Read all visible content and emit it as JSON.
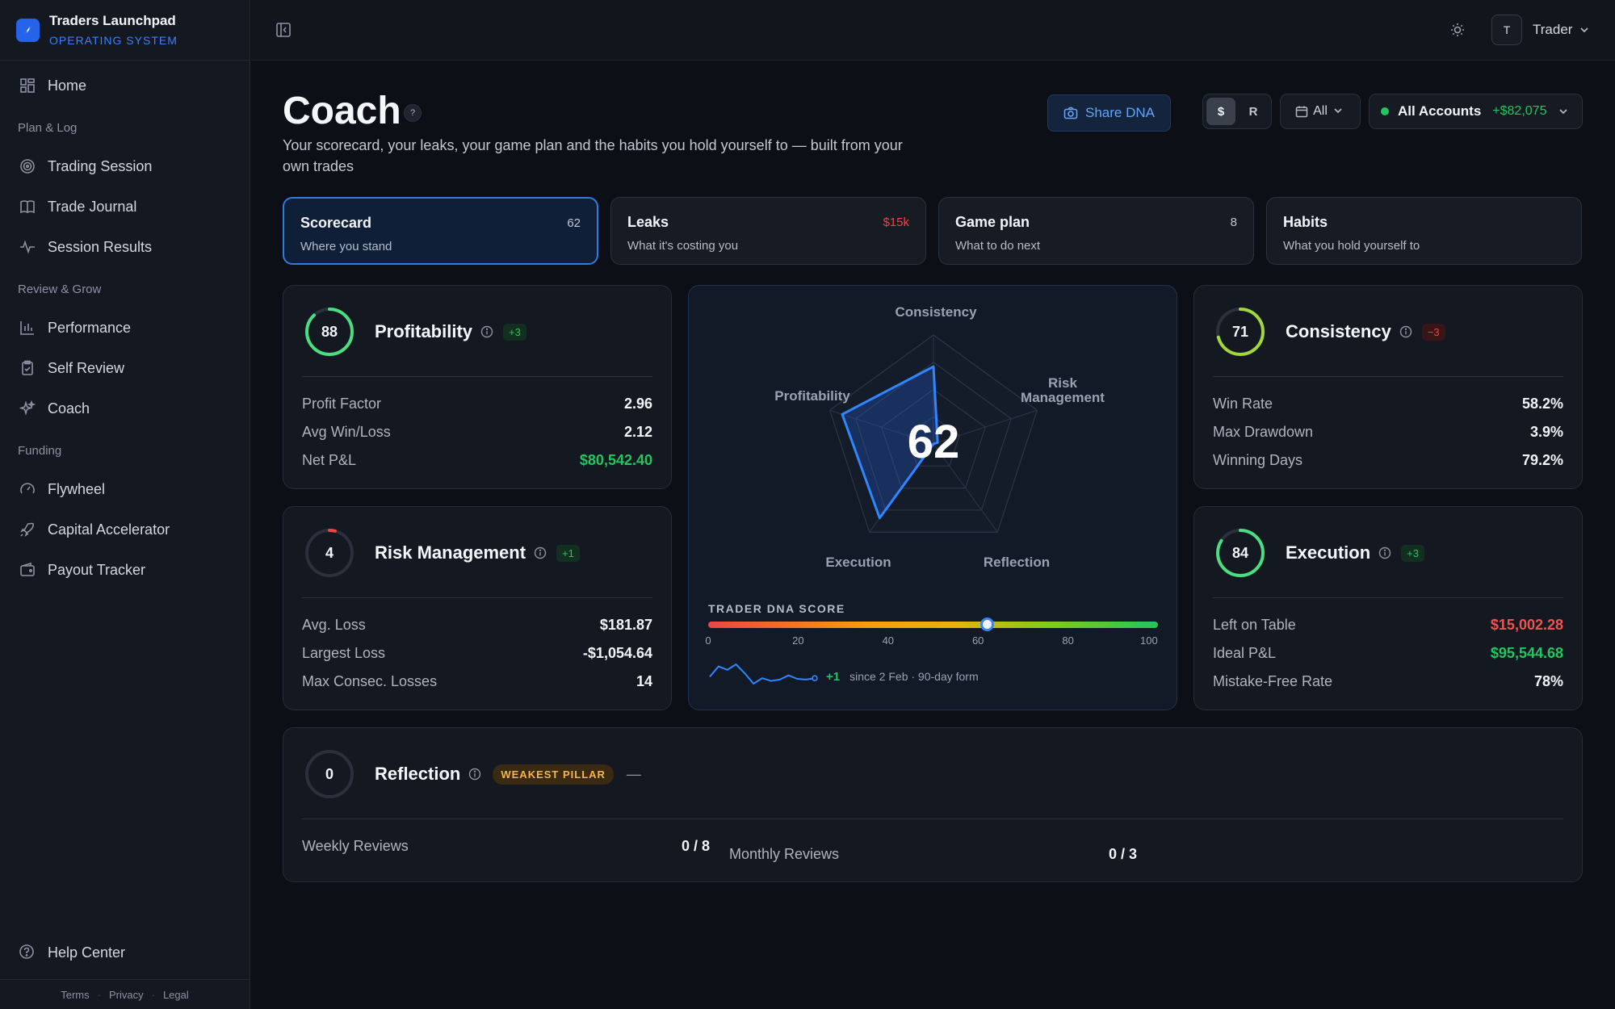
{
  "app": {
    "name": "Traders Launchpad",
    "subtitle": "OPERATING SYSTEM"
  },
  "sidebar": {
    "home": "Home",
    "sections": [
      {
        "label": "Plan & Log",
        "items": [
          "Trading Session",
          "Trade Journal",
          "Session Results"
        ]
      },
      {
        "label": "Review & Grow",
        "items": [
          "Performance",
          "Self Review",
          "Coach"
        ]
      },
      {
        "label": "Funding",
        "items": [
          "Flywheel",
          "Capital Accelerator",
          "Payout Tracker"
        ]
      }
    ],
    "help": "Help Center",
    "footer": [
      "Terms",
      "Privacy",
      "Legal"
    ]
  },
  "topbar": {
    "avatar_initial": "T",
    "user_name": "Trader"
  },
  "header": {
    "title": "Coach",
    "help_glyph": "?",
    "description": "Your scorecard, your leaks, your game plan and the habits you hold yourself to — built from your own trades",
    "share_label": "Share DNA",
    "unit_options": [
      "$",
      "R"
    ],
    "range_label": "All",
    "account_label": "All Accounts",
    "account_amount": "+$82,075"
  },
  "tabs": [
    {
      "title": "Scorecard",
      "subtitle": "Where you stand",
      "count": "62"
    },
    {
      "title": "Leaks",
      "subtitle": "What it's costing you",
      "count": "$15k"
    },
    {
      "title": "Game plan",
      "subtitle": "What to do next",
      "count": "8"
    },
    {
      "title": "Habits",
      "subtitle": "What you hold yourself to",
      "count": ""
    }
  ],
  "pillars": {
    "profitability": {
      "score": "88",
      "score_value": 88,
      "title": "Profitability",
      "delta": "+3",
      "color": "#4ade80",
      "rows": [
        {
          "label": "Profit Factor",
          "value": "2.96"
        },
        {
          "label": "Avg Win/Loss",
          "value": "2.12"
        },
        {
          "label": "Net P&L",
          "value": "$80,542.40"
        }
      ]
    },
    "risk": {
      "score": "4",
      "score_value": 4,
      "title": "Risk Management",
      "delta": "+1",
      "color": "#ef4444",
      "rows": [
        {
          "label": "Avg. Loss",
          "value": "$181.87"
        },
        {
          "label": "Largest Loss",
          "value": "-$1,054.64"
        },
        {
          "label": "Max Consec. Losses",
          "value": "14"
        }
      ]
    },
    "consistency": {
      "score": "71",
      "score_value": 71,
      "title": "Consistency",
      "delta": "−3",
      "color": "#a3d63a",
      "rows": [
        {
          "label": "Win Rate",
          "value": "58.2%"
        },
        {
          "label": "Max Drawdown",
          "value": "3.9%"
        },
        {
          "label": "Winning Days",
          "value": "79.2%"
        }
      ]
    },
    "execution": {
      "score": "84",
      "score_value": 84,
      "title": "Execution",
      "delta": "+3",
      "color": "#4ade80",
      "rows": [
        {
          "label": "Left on Table",
          "value": "$15,002.28"
        },
        {
          "label": "Ideal P&L",
          "value": "$95,544.68"
        },
        {
          "label": "Mistake-Free Rate",
          "value": "78%"
        }
      ]
    },
    "reflection": {
      "score": "0",
      "score_value": 0,
      "title": "Reflection",
      "badge": "WEAKEST PILLAR",
      "dash": "—",
      "rows": [
        {
          "label": "Weekly Reviews",
          "value": "0 / 8"
        },
        {
          "label": "Monthly Reviews",
          "value": "0 / 3"
        }
      ]
    }
  },
  "dna": {
    "score": "62",
    "axes": [
      "Consistency",
      "Risk Management",
      "Reflection",
      "Execution",
      "Profitability"
    ],
    "axis_values": [
      71,
      4,
      0,
      84,
      88
    ],
    "label": "TRADER DNA SCORE",
    "ticks": [
      "0",
      "20",
      "40",
      "60",
      "80",
      "100"
    ],
    "knob_value": 62,
    "form_delta": "+1",
    "form_text": "since 2 Feb · 90-day form",
    "sparkline": [
      40,
      55,
      50,
      58,
      45,
      30,
      38,
      34,
      36,
      42,
      37,
      36,
      38
    ]
  }
}
